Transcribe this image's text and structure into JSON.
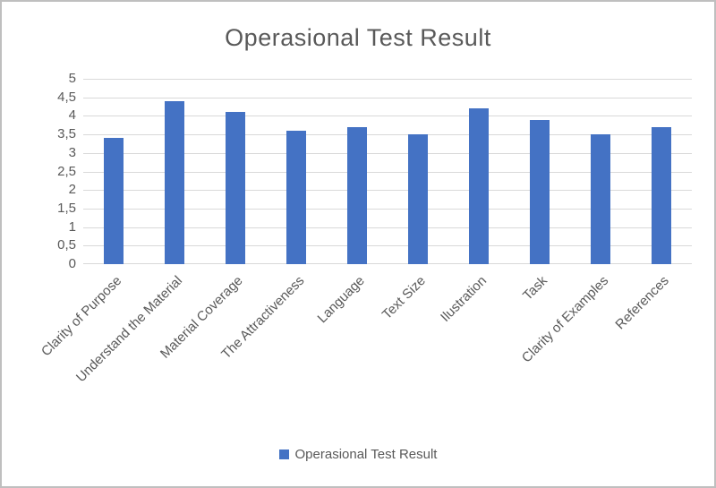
{
  "chart_data": {
    "type": "bar",
    "title": "Operasional Test Result",
    "categories": [
      "Clarity of Purpose",
      "Understand the Material",
      "Material Coverage",
      "The Attractiveness",
      "Language",
      "Text Size",
      "Ilustration",
      "Task",
      "Clarity of Examples",
      "References"
    ],
    "series": [
      {
        "name": "Operasional Test Result",
        "values": [
          3.4,
          4.4,
          4.1,
          3.6,
          3.7,
          3.5,
          4.2,
          3.9,
          3.5,
          3.7
        ]
      }
    ],
    "xlabel": "",
    "ylabel": "",
    "ylim": [
      0,
      5
    ],
    "ytick_step": 0.5,
    "ytick_labels": [
      "0",
      "0,5",
      "1",
      "1,5",
      "2",
      "2,5",
      "3",
      "3,5",
      "4",
      "4,5",
      "5"
    ],
    "grid": true,
    "legend_position": "bottom",
    "bar_color": "#4472C4",
    "gridline_color": "#D9D9D9",
    "text_color": "#595959",
    "border_color": "#BFBFBF"
  }
}
